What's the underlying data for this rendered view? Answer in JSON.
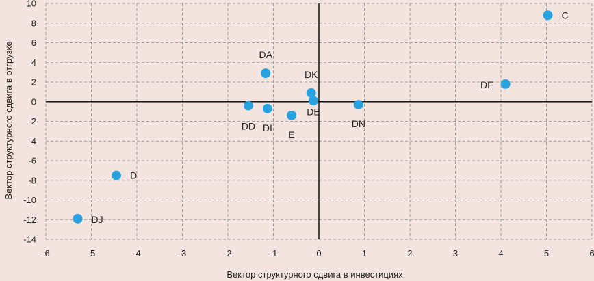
{
  "chart_data": {
    "type": "scatter",
    "title": "",
    "xlabel": "Вектор структурного сдвига в инвестициях",
    "ylabel": "Вектор структурного сдвига в отгрузке",
    "xlim": [
      -6,
      6
    ],
    "ylim": [
      -14,
      10
    ],
    "x_ticks": [
      -6,
      -5,
      -4,
      -3,
      -2,
      -1,
      0,
      1,
      2,
      3,
      4,
      5,
      6
    ],
    "y_ticks": [
      10,
      8,
      6,
      4,
      2,
      0,
      -2,
      -4,
      -6,
      -8,
      -10,
      -12,
      -14
    ],
    "grid": true,
    "grid_style": "dashed",
    "point_color": "#29a3df",
    "background_color": "#f3e4e0",
    "points": [
      {
        "label": "C",
        "x": 5.03,
        "y": 8.8
      },
      {
        "label": "DF",
        "x": 4.1,
        "y": 1.8
      },
      {
        "label": "DA",
        "x": -1.17,
        "y": 2.9
      },
      {
        "label": "DK",
        "x": -0.17,
        "y": 0.9
      },
      {
        "label": "DE",
        "x": -0.12,
        "y": 0.1
      },
      {
        "label": "DN",
        "x": 0.87,
        "y": -0.3
      },
      {
        "label": "DD",
        "x": -1.55,
        "y": -0.4
      },
      {
        "label": "DI",
        "x": -1.13,
        "y": -0.7
      },
      {
        "label": "E",
        "x": -0.6,
        "y": -1.4
      },
      {
        "label": "D",
        "x": -4.45,
        "y": -7.5
      },
      {
        "label": "DJ",
        "x": -5.3,
        "y": -11.9
      }
    ]
  }
}
